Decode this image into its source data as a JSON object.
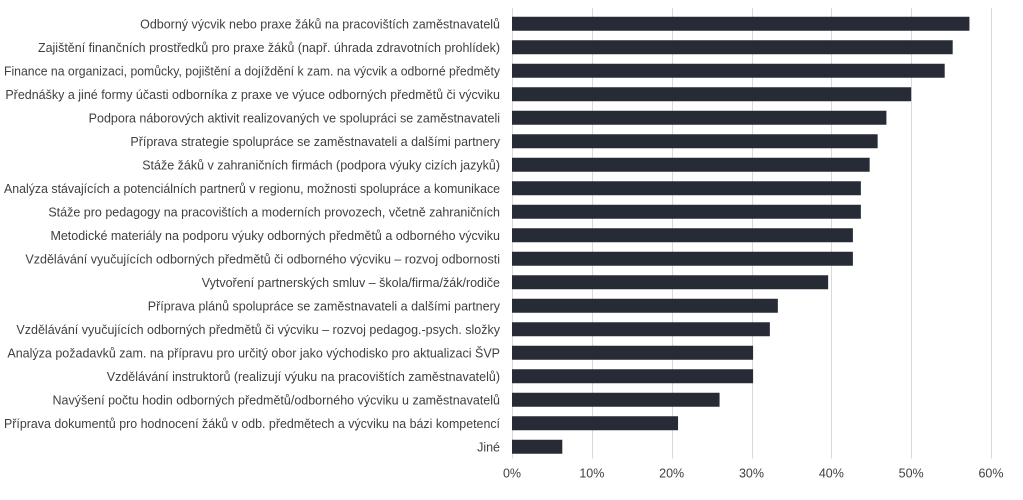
{
  "chart_data": {
    "type": "bar",
    "orientation": "horizontal",
    "categories": [
      "Odborný výcvik nebo praxe žáků na pracovištích zaměstnavatelů",
      "Zajištění finančních prostředků pro praxe žáků (např. úhrada zdravotních prohlídek)",
      "Finance na organizaci, pomůcky, pojištění a dojíždění k zam. na výcvik a odborné předměty",
      "Přednášky a jiné formy účasti odborníka z praxe ve výuce odborných předmětů či výcviku",
      "Podpora náborových aktivit realizovaných ve spolupráci se zaměstnavateli",
      "Příprava strategie spolupráce se zaměstnavateli a dalšími partnery",
      "Stáže žáků v zahraničních firmách (podpora výuky cizích jazyků)",
      "Analýza stávajících a potenciálních partnerů v regionu, možnosti spolupráce a komunikace",
      "Stáže pro pedagogy na pracovištích a moderních provozech, včetně zahraničních",
      "Metodické materiály na podporu výuky odborných předmětů a odborného výcviku",
      "Vzdělávání vyučujících odborných předmětů či odborného výcviku – rozvoj odbornosti",
      "Vytvoření partnerských smluv – škola/firma/žák/rodiče",
      "Příprava plánů spolupráce se zaměstnavateli a dalšími partnery",
      "Vzdělávání vyučujících odborných předmětů či výcviku – rozvoj pedagog.-psych. složky",
      "Analýza požadavků zam. na přípravu pro určitý obor jako východisko pro aktualizaci ŠVP",
      "Vzdělávání instruktorů (realizují výuku na pracovištích zaměstnavatelů)",
      "Navýšení počtu hodin odborných předmětů/odborného výcviku u zaměstnavatelů",
      "Příprava dokumentů pro hodnocení žáků v odb. předmětech a výcviku na bázi kompetencí",
      "Jiné"
    ],
    "values": [
      57.3,
      55.2,
      54.2,
      50.0,
      46.9,
      45.8,
      44.8,
      43.7,
      43.7,
      42.7,
      42.7,
      39.6,
      33.3,
      32.3,
      30.2,
      30.2,
      26.0,
      20.8,
      6.3
    ],
    "xlim": [
      0,
      60
    ],
    "xticks": [
      "0%",
      "10%",
      "20%",
      "30%",
      "40%",
      "50%",
      "60%"
    ],
    "xtick_values": [
      0,
      10,
      20,
      30,
      40,
      50,
      60
    ],
    "grid": "vertical",
    "legend": "none",
    "bar_color": "#262b36"
  }
}
